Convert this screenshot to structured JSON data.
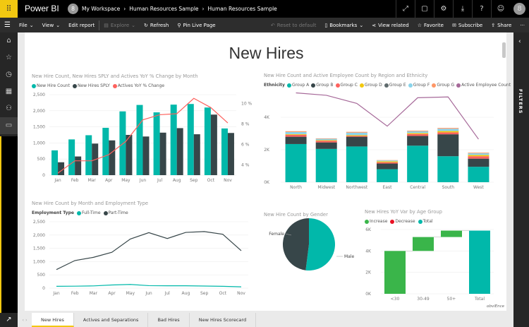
{
  "app": {
    "name": "Power BI",
    "logo_icon": "waffle-icon",
    "accent": "#f2c811"
  },
  "breadcrumb": [
    "My Workspace",
    "Human Resources Sample",
    "Human Resources Sample"
  ],
  "user_initial": "8",
  "top_icons": [
    "fullscreen-icon",
    "comment-icon",
    "gear-icon",
    "download-icon",
    "help-icon",
    "smiley-icon"
  ],
  "toolbar": {
    "file": "File",
    "view": "View",
    "edit": "Edit report",
    "explore": "Explore",
    "refresh": "Refresh",
    "pin": "Pin Live Page",
    "reset": "Reset to default",
    "bookmarks": "Bookmarks",
    "view_related": "View related",
    "favorite": "Favorite",
    "subscribe": "Subscribe",
    "share": "Share",
    "more": "···"
  },
  "filters_label": "FILTERS",
  "page_title": "New Hires",
  "tabs": [
    "New Hires",
    "Actives and Separations",
    "Bad Hires",
    "New Hires Scorecard"
  ],
  "active_tab": "New Hires",
  "watermark": "obviEnce",
  "chart_data": [
    {
      "type": "bar",
      "title": "New Hire Count, New Hires SPLY and Actives YoY % Change by Month",
      "categories": [
        "Jan",
        "Feb",
        "Mar",
        "Apr",
        "May",
        "Jun",
        "Jul",
        "Aug",
        "Sep",
        "Oct",
        "Nov"
      ],
      "yticks": [
        "0",
        "500",
        "1,000",
        "1,500",
        "2,000",
        "2,500"
      ],
      "ylim": [
        0,
        2500
      ],
      "y2ticks": [
        "4 %",
        "6 %",
        "8 %",
        "10 %"
      ],
      "y2lim": [
        3,
        11
      ],
      "series": [
        {
          "name": "New Hire Count",
          "color": "#01b8aa",
          "values": [
            770,
            1110,
            1240,
            1470,
            1980,
            2180,
            1950,
            2190,
            2210,
            2100,
            1450
          ]
        },
        {
          "name": "New Hires SPLY",
          "color": "#374649",
          "values": [
            400,
            580,
            980,
            1080,
            1250,
            1200,
            1320,
            1460,
            1270,
            1880,
            1310
          ]
        },
        {
          "name": "Actives YoY % Change",
          "color": "#fd625e",
          "type": "line",
          "axis": "right",
          "values": [
            3.2,
            4.4,
            4.4,
            5.0,
            6.3,
            8.4,
            8.9,
            9.0,
            10.5,
            9.6,
            8.1
          ]
        }
      ]
    },
    {
      "type": "bar",
      "stacked": true,
      "title": "New Hire Count and Active Employee Count by Region and Ethnicity",
      "legend_title": "Ethnicity",
      "categories": [
        "North",
        "Midwest",
        "Northwest",
        "East",
        "Central",
        "South",
        "West"
      ],
      "yticks": [
        "0K",
        "2K",
        "4K"
      ],
      "ylim": [
        0,
        5800
      ],
      "series": [
        {
          "name": "Group A",
          "color": "#01b8aa",
          "values": [
            2350,
            2050,
            2200,
            800,
            2250,
            1600,
            950
          ]
        },
        {
          "name": "Group B",
          "color": "#374649",
          "values": [
            450,
            400,
            600,
            350,
            600,
            1350,
            500
          ]
        },
        {
          "name": "Group C",
          "color": "#fd625e",
          "values": [
            120,
            100,
            50,
            80,
            120,
            120,
            150
          ]
        },
        {
          "name": "Group D",
          "color": "#f2c80f",
          "values": [
            40,
            40,
            50,
            60,
            60,
            80,
            80
          ]
        },
        {
          "name": "Group E",
          "color": "#5f6b6d",
          "values": [
            0,
            0,
            0,
            0,
            0,
            0,
            0
          ]
        },
        {
          "name": "Group F",
          "color": "#8ad4eb",
          "values": [
            130,
            80,
            150,
            50,
            100,
            140,
            100
          ]
        },
        {
          "name": "Group G",
          "color": "#fe9666",
          "values": [
            50,
            30,
            50,
            20,
            40,
            50,
            40
          ]
        },
        {
          "name": "Active Employee Count",
          "color": "#a66999",
          "type": "line",
          "values": [
            5500,
            5350,
            4850,
            3450,
            5200,
            5250,
            2650
          ]
        }
      ]
    },
    {
      "type": "line",
      "title": "New Hire Count by Month and Employment Type",
      "legend_title": "Employment Type",
      "categories": [
        "Jan",
        "Feb",
        "Mar",
        "Apr",
        "May",
        "Jun",
        "Jul",
        "Aug",
        "Sep",
        "Oct",
        "Nov"
      ],
      "yticks": [
        "0",
        "500",
        "1,000",
        "1,500",
        "2,000",
        "2,500"
      ],
      "ylim": [
        0,
        2500
      ],
      "series": [
        {
          "name": "Full-Time",
          "color": "#01b8aa",
          "values": [
            70,
            75,
            85,
            120,
            140,
            95,
            90,
            90,
            80,
            70,
            50
          ]
        },
        {
          "name": "Part-Time",
          "color": "#374649",
          "values": [
            700,
            1040,
            1160,
            1350,
            1850,
            2090,
            1870,
            2100,
            2130,
            2030,
            1410
          ]
        }
      ]
    },
    {
      "type": "pie",
      "title": "New Hire Count by Gender",
      "slices": [
        {
          "label": "Male",
          "value": 52,
          "color": "#01b8aa"
        },
        {
          "label": "Female",
          "value": 48,
          "color": "#374649"
        }
      ]
    },
    {
      "type": "bar",
      "subtype": "waterfall",
      "title": "New Hires YoY Var by Age Group",
      "legend": [
        {
          "name": "Increase",
          "color": "#3ab54a"
        },
        {
          "name": "Decrease",
          "color": "#e81123"
        },
        {
          "name": "Total",
          "color": "#01b8aa"
        }
      ],
      "categories": [
        "<30",
        "30-49",
        "50+",
        "Total"
      ],
      "values": [
        4000,
        1300,
        600,
        5900
      ],
      "yticks": [
        "0K",
        "2K",
        "4K",
        "6K"
      ],
      "ylim": [
        0,
        6000
      ]
    }
  ]
}
